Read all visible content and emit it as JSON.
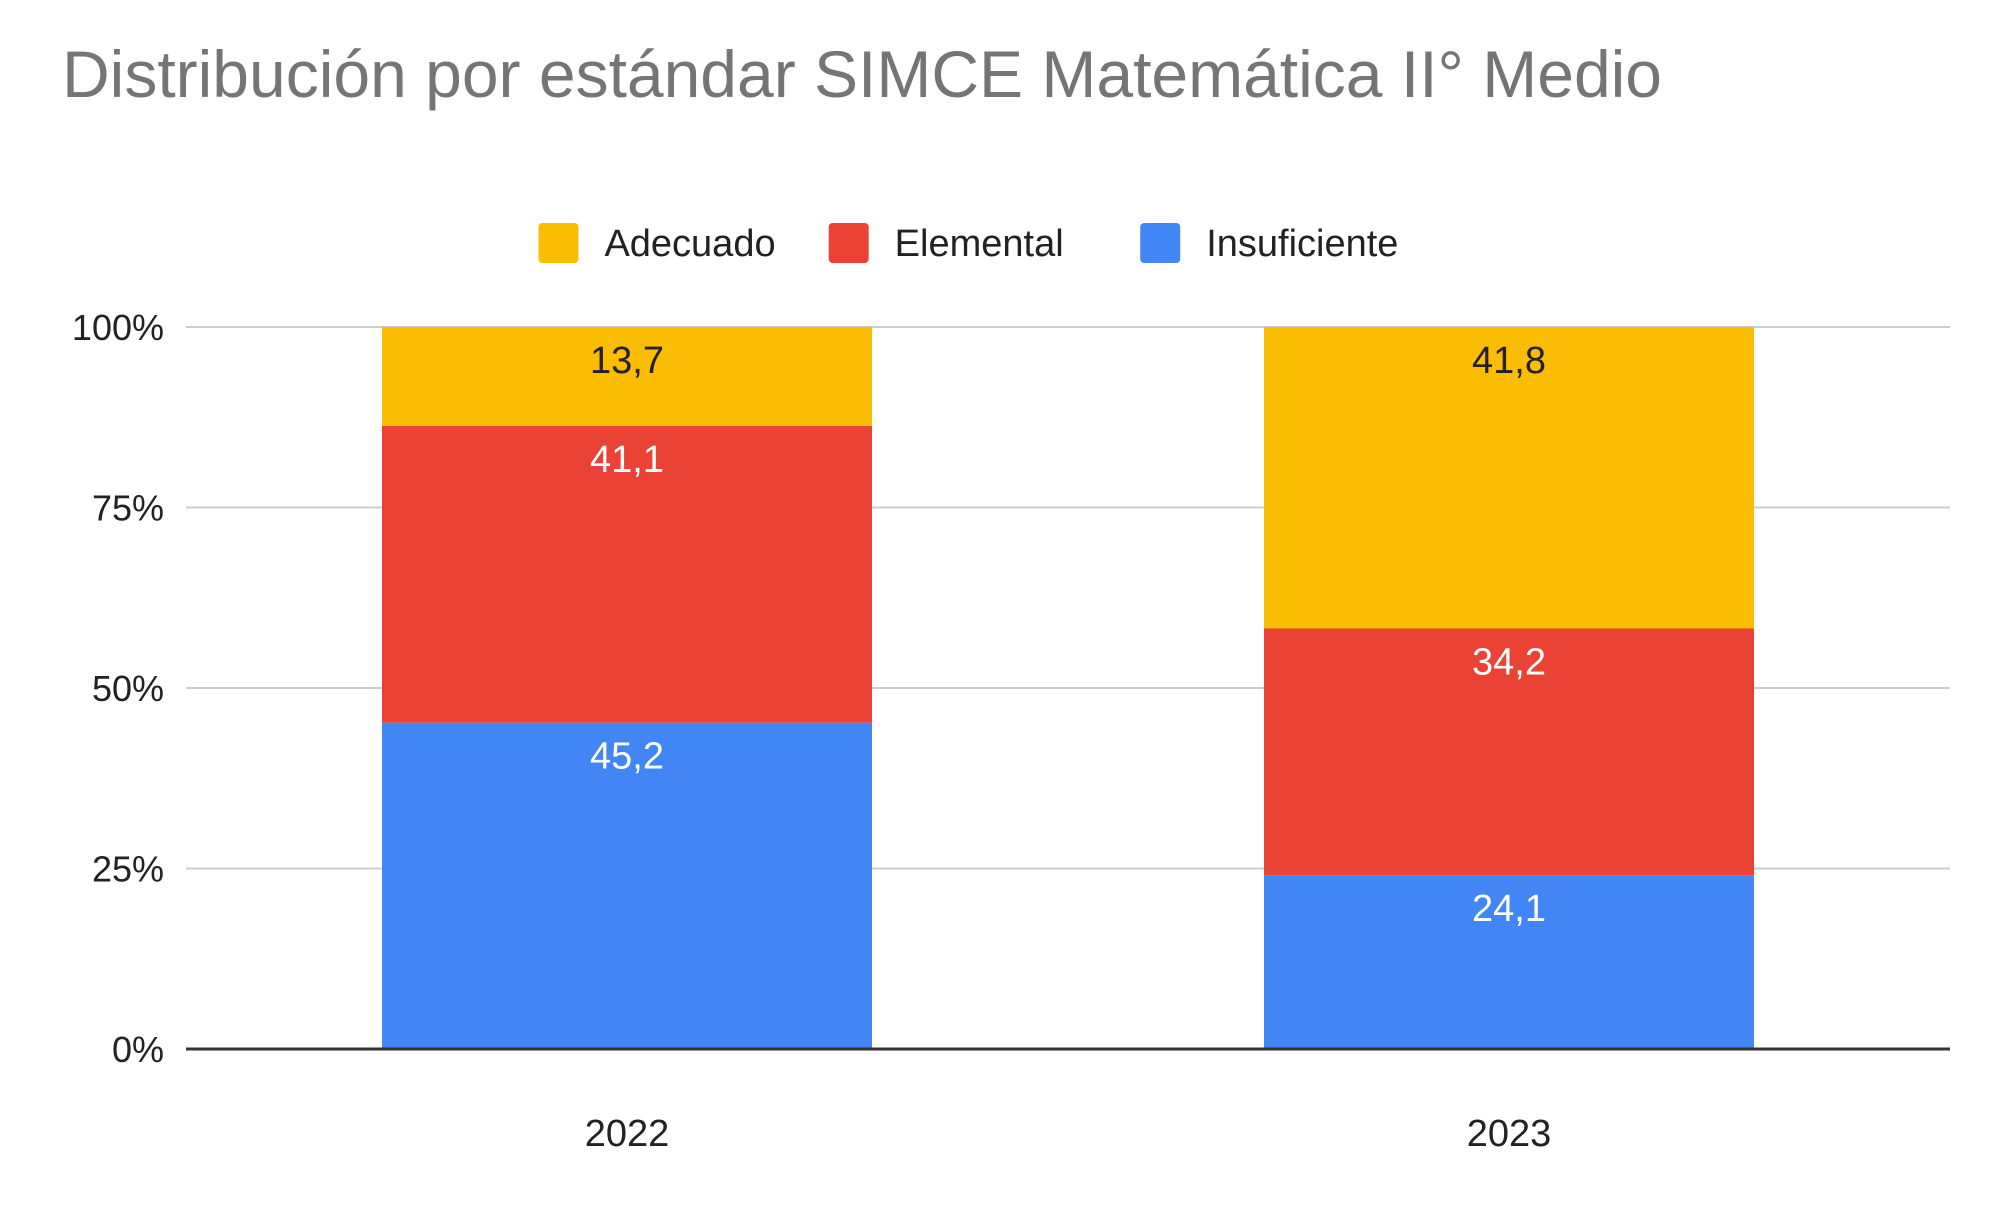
{
  "chart_data": {
    "type": "bar",
    "stacked": true,
    "normalized": true,
    "title": "Distribución por estándar SIMCE Matemática II° Medio",
    "categories": [
      "2022",
      "2023"
    ],
    "series": [
      {
        "name": "Insuficiente",
        "color": "#4285F4",
        "label_color": "#ffffff",
        "values": [
          45.2,
          24.1
        ],
        "labels": [
          "45,2",
          "24,1"
        ]
      },
      {
        "name": "Elemental",
        "color": "#EA4335",
        "label_color": "#ffffff",
        "values": [
          41.1,
          34.2
        ],
        "labels": [
          "41,1",
          "34,2"
        ]
      },
      {
        "name": "Adecuado",
        "color": "#FBBC04",
        "label_color": "#222222",
        "values": [
          13.7,
          41.8
        ],
        "labels": [
          "13,7",
          "41,8"
        ]
      }
    ],
    "legend_order": [
      "Adecuado",
      "Elemental",
      "Insuficiente"
    ],
    "legend_position": "top",
    "ylim": [
      0,
      100
    ],
    "yticks": [
      0,
      25,
      50,
      75,
      100
    ],
    "ytick_labels": [
      "0%",
      "25%",
      "50%",
      "75%",
      "100%"
    ],
    "grid": true,
    "xlabel": "",
    "ylabel": ""
  }
}
